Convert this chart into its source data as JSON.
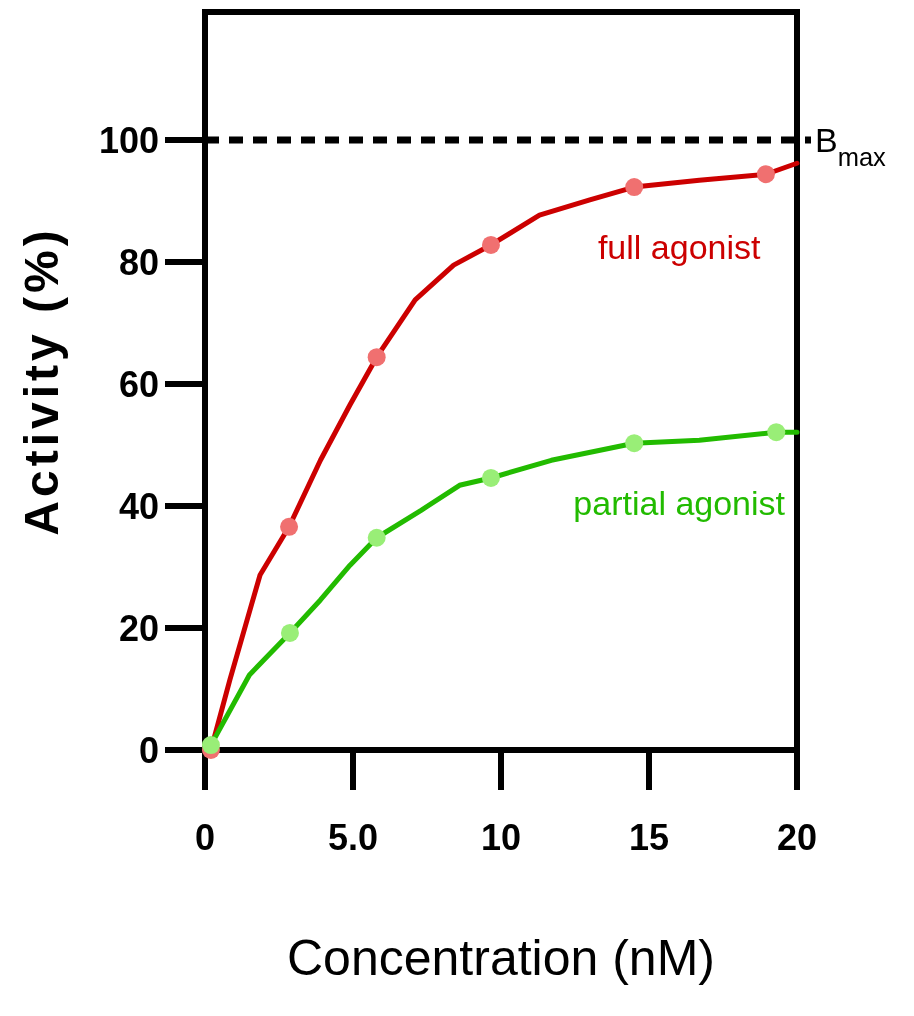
{
  "chart_data": {
    "type": "line",
    "xlabel": "Concentration (nM)",
    "ylabel": "Activity (%)",
    "xlim": [
      0,
      20
    ],
    "ylim": [
      0,
      121
    ],
    "xticks": [
      0,
      {
        "value": 5,
        "label": "5.0"
      },
      10,
      15,
      20
    ],
    "yticks": [
      0,
      20,
      40,
      60,
      80,
      100
    ],
    "grid": false,
    "line_style": "solid",
    "ref_lines": [
      {
        "axis": "y",
        "value": 100,
        "label": "B$_{max}$",
        "color": "#000000",
        "line_style": "dashed"
      }
    ],
    "series": [
      {
        "name": "full agonist",
        "color": "#cc0000",
        "x": [
          0.2,
          0.84,
          1.86,
          2.84,
          3.9,
          4.9,
          5.8,
          7.1,
          8.4,
          9.66,
          11.3,
          13,
          14.5,
          16.7,
          18.95,
          20
        ],
        "values": [
          0,
          11.5,
          28.7,
          36.6,
          47.5,
          56.6,
          64.4,
          73.8,
          79.5,
          82.8,
          87.7,
          90.2,
          92.3,
          93.4,
          94.4,
          96.2
        ]
      },
      {
        "type": "scatter",
        "marker": "circle",
        "color": "#f07070",
        "x": [
          0.2,
          2.84,
          5.8,
          9.66,
          14.5,
          18.95
        ],
        "values": [
          0,
          36.6,
          64.4,
          82.8,
          92.3,
          94.4
        ]
      },
      {
        "name": "partial agonist",
        "color": "#22bb00",
        "x": [
          0.2,
          1.5,
          2.87,
          3.9,
          4.9,
          5.8,
          7.3,
          8.6,
          9.66,
          11.7,
          14.5,
          16.7,
          19.3,
          20
        ],
        "values": [
          0.8,
          12.3,
          19.2,
          24.6,
          30.3,
          34.8,
          39.3,
          43.4,
          44.6,
          47.5,
          50.3,
          50.8,
          52.1,
          52.1
        ]
      },
      {
        "type": "scatter",
        "marker": "circle",
        "color": "#99ee77",
        "x": [
          0.2,
          2.87,
          5.8,
          9.66,
          14.5,
          19.3
        ],
        "values": [
          0.8,
          19.2,
          34.8,
          44.6,
          50.3,
          52.1
        ]
      }
    ]
  }
}
